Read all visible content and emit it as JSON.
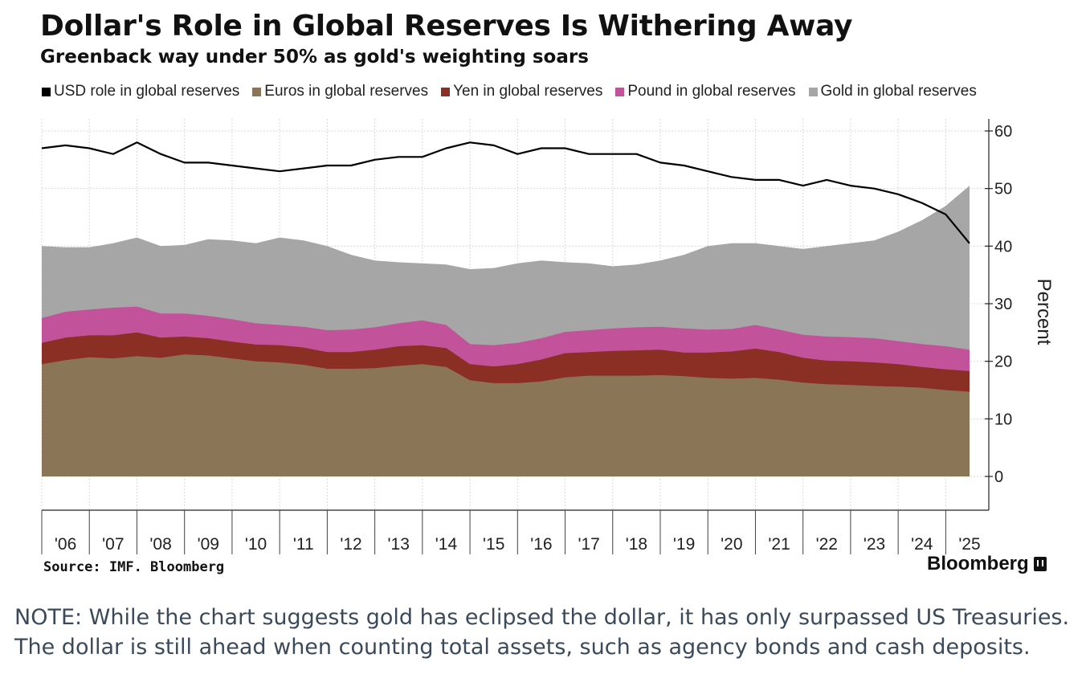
{
  "header": {
    "title": "Dollar's Role in Global Reserves Is Withering Away",
    "subtitle": "Greenback way under 50% as gold's weighting soars"
  },
  "footer": {
    "source": "Source: IMF. Bloomberg",
    "brand": "Bloomberg",
    "brand_icon": "bloomberg-terminal-icon"
  },
  "note": {
    "text": "NOTE: While the chart suggests gold has eclipsed the dollar, it has only surpassed US Treasuries. The dollar is still ahead when counting total assets, such as agency bonds and cash deposits."
  },
  "chart_data": {
    "type": "area",
    "title": "Dollar's Role in Global Reserves Is Withering Away",
    "subtitle": "Greenback way under 50% as gold's weighting soars",
    "xlabel": "",
    "ylabel": "Percent",
    "ylim": [
      0,
      60
    ],
    "yticks": [
      "0",
      "10",
      "20",
      "30",
      "40",
      "50",
      "60"
    ],
    "xticks": [
      "'06",
      "'07",
      "'08",
      "'09",
      "'10",
      "'11",
      "'12",
      "'13",
      "'14",
      "'15",
      "'16",
      "'17",
      "'18",
      "'19",
      "'20",
      "'21",
      "'22",
      "'23",
      "'24",
      "'25"
    ],
    "x_range": [
      2006.0,
      2025.5
    ],
    "grid": true,
    "legend_position": "top",
    "stacking": "cumulative areas (Euros, Yen, Pound, Gold) with USD as a separate line",
    "x": [
      2006.0,
      2006.5,
      2007.0,
      2007.5,
      2008.0,
      2008.5,
      2009.0,
      2009.5,
      2010.0,
      2010.5,
      2011.0,
      2011.5,
      2012.0,
      2012.5,
      2013.0,
      2013.5,
      2014.0,
      2014.5,
      2015.0,
      2015.5,
      2016.0,
      2016.5,
      2017.0,
      2017.5,
      2018.0,
      2018.5,
      2019.0,
      2019.5,
      2020.0,
      2020.5,
      2021.0,
      2021.5,
      2022.0,
      2022.5,
      2023.0,
      2023.5,
      2024.0,
      2024.5,
      2025.0,
      2025.5
    ],
    "series": [
      {
        "name": "USD role in global reserves",
        "kind": "line",
        "color": "#000000",
        "values": [
          57,
          57.5,
          57,
          56,
          58,
          56,
          54.5,
          54.5,
          54,
          53.5,
          53,
          53.5,
          54,
          54,
          55,
          55.5,
          55.5,
          57,
          58,
          57.5,
          56,
          57,
          57,
          56,
          56,
          56,
          54.5,
          54,
          53,
          52,
          51.5,
          51.5,
          50.5,
          51.5,
          50.5,
          50,
          49,
          47.5,
          45.5,
          40.5
        ]
      },
      {
        "name": "Euros in global reserves",
        "kind": "area",
        "color": "#8a7656",
        "values": [
          19.5,
          20.2,
          20.7,
          20.5,
          20.9,
          20.6,
          21.2,
          21.0,
          20.5,
          20.0,
          19.8,
          19.4,
          18.7,
          18.7,
          18.8,
          19.2,
          19.5,
          19.0,
          16.7,
          16.2,
          16.2,
          16.5,
          17.2,
          17.5,
          17.5,
          17.5,
          17.6,
          17.4,
          17.1,
          17.0,
          17.1,
          16.8,
          16.3,
          16.0,
          15.9,
          15.7,
          15.6,
          15.4,
          15.0,
          14.7
        ]
      },
      {
        "name": "Yen in global reserves",
        "kind": "area",
        "color": "#8b2e23",
        "values": [
          23.2,
          24.1,
          24.5,
          24.5,
          25.0,
          24.1,
          24.3,
          24.0,
          23.4,
          22.9,
          22.8,
          22.4,
          21.6,
          21.6,
          22.0,
          22.6,
          22.8,
          22.3,
          19.5,
          19.1,
          19.5,
          20.3,
          21.4,
          21.6,
          21.8,
          21.9,
          22.0,
          21.5,
          21.5,
          21.7,
          22.2,
          21.6,
          20.6,
          20.1,
          20.0,
          19.8,
          19.5,
          19.0,
          18.6,
          18.3
        ]
      },
      {
        "name": "Pound in global reserves",
        "kind": "area",
        "color": "#c2539b",
        "values": [
          27.5,
          28.6,
          29.0,
          29.3,
          29.5,
          28.3,
          28.3,
          27.9,
          27.3,
          26.6,
          26.3,
          26.0,
          25.4,
          25.5,
          25.9,
          26.6,
          27.1,
          26.3,
          23.0,
          22.8,
          23.2,
          24.0,
          25.1,
          25.4,
          25.7,
          25.9,
          26.0,
          25.7,
          25.5,
          25.6,
          26.3,
          25.5,
          24.6,
          24.3,
          24.2,
          24.0,
          23.5,
          23.0,
          22.6,
          22.0
        ]
      },
      {
        "name": "Gold in global reserves",
        "kind": "area",
        "color": "#a6a6a6",
        "values": [
          40.0,
          39.8,
          39.8,
          40.5,
          41.5,
          40.0,
          40.2,
          41.2,
          41.0,
          40.5,
          41.5,
          41.0,
          40.0,
          38.5,
          37.5,
          37.2,
          37.0,
          36.8,
          36.0,
          36.2,
          37.0,
          37.5,
          37.2,
          37.0,
          36.5,
          36.8,
          37.5,
          38.5,
          40.0,
          40.5,
          40.5,
          40.0,
          39.5,
          40.0,
          40.5,
          41.0,
          42.5,
          44.5,
          47.0,
          50.5
        ]
      }
    ]
  }
}
